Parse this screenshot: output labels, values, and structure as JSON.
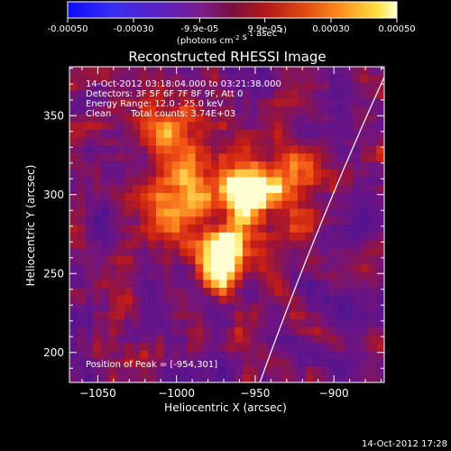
{
  "colorbar": {
    "ticks": [
      "-0.00050",
      "-0.00030",
      "-9.9e-05",
      "9.9e-05",
      "0.00030",
      "0.00050"
    ],
    "tick_values": [
      -0.0005,
      -0.0003,
      -9.9e-05,
      9.9e-05,
      0.0003,
      0.0005
    ],
    "range": [
      -0.0005,
      0.0005
    ],
    "units_html": "(photons cm<sup>-2</sup> s<sup>-1</sup> asec<sup>-2</sup>)",
    "units_plain": "(photons cm-2 s-1 asec-2)"
  },
  "title": "Reconstructed RHESSI Image",
  "annotations": {
    "time_range": "14-Oct-2012 03:18:04.000 to 03:21:38.000",
    "detectors": "Detectors: 3F 5F 6F 7F 8F 9F, Att 0",
    "energy_range": "Energy Range: 12.0 - 25.0 keV",
    "clean_label": "Clean",
    "total_counts": "Total counts: 3.74E+03",
    "peak_position": "Position of Peak = [-954,301]"
  },
  "axes": {
    "xlabel": "Heliocentric X (arcsec)",
    "ylabel": "Heliocentric Y (arcsec)",
    "xlim": [
      -1068,
      -868
    ],
    "ylim": [
      181,
      381
    ],
    "xticks": [
      -1050,
      -1000,
      -950,
      -900
    ],
    "xtick_labels": [
      "−1050",
      "−1000",
      "−950",
      "−900"
    ],
    "yticks": [
      200,
      250,
      300,
      350
    ],
    "ytick_labels": [
      "200",
      "250",
      "300",
      "350"
    ]
  },
  "peak": {
    "x": -954,
    "y": 301
  },
  "footer_timestamp": "14-Oct-2012 17:28",
  "colors": {
    "background": "#000000",
    "limb_line": "#ffffff",
    "colormap_stops": [
      "#1e2dff",
      "#5a1db4",
      "#7a1a8a",
      "#9c1b4a",
      "#c81e1e",
      "#f0501a",
      "#ff9a28",
      "#ffe060",
      "#ffffc8"
    ]
  }
}
